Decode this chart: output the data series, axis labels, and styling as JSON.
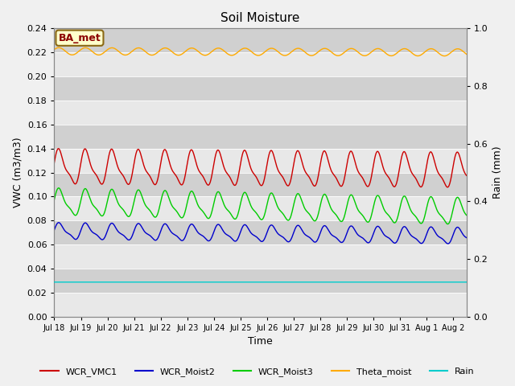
{
  "title": "Soil Moisture",
  "xlabel": "Time",
  "ylabel_left": "VWC (m3/m3)",
  "ylabel_right": "Rain (mm)",
  "annotation": "BA_met",
  "fig_bg_color": "#f0f0f0",
  "plot_bg_color": "#d8d8d8",
  "band_color_light": "#e8e8e8",
  "band_color_dark": "#d0d0d0",
  "ylim_left": [
    0.0,
    0.24
  ],
  "ylim_right": [
    0.0,
    1.0
  ],
  "colors": {
    "WCR_VMC1": "#cc0000",
    "WCR_Moist2": "#0000cc",
    "WCR_Moist3": "#00cc00",
    "Theta_moist": "#ffaa00",
    "Rain": "#00cccc"
  },
  "tick_labels": [
    "Jul 18",
    "Jul 19",
    "Jul 20",
    "Jul 21",
    "Jul 22",
    "Jul 23",
    "Jul 24",
    "Jul 25",
    "Jul 26",
    "Jul 27",
    "Jul 28",
    "Jul 29",
    "Jul 30",
    "Jul 31",
    "Aug 1",
    "Aug 2"
  ],
  "yticks_left": [
    0.0,
    0.02,
    0.04,
    0.06,
    0.08,
    0.1,
    0.12,
    0.14,
    0.16,
    0.18,
    0.2,
    0.22,
    0.24
  ],
  "yticks_right": [
    0.0,
    0.2,
    0.4,
    0.6,
    0.8,
    1.0
  ]
}
